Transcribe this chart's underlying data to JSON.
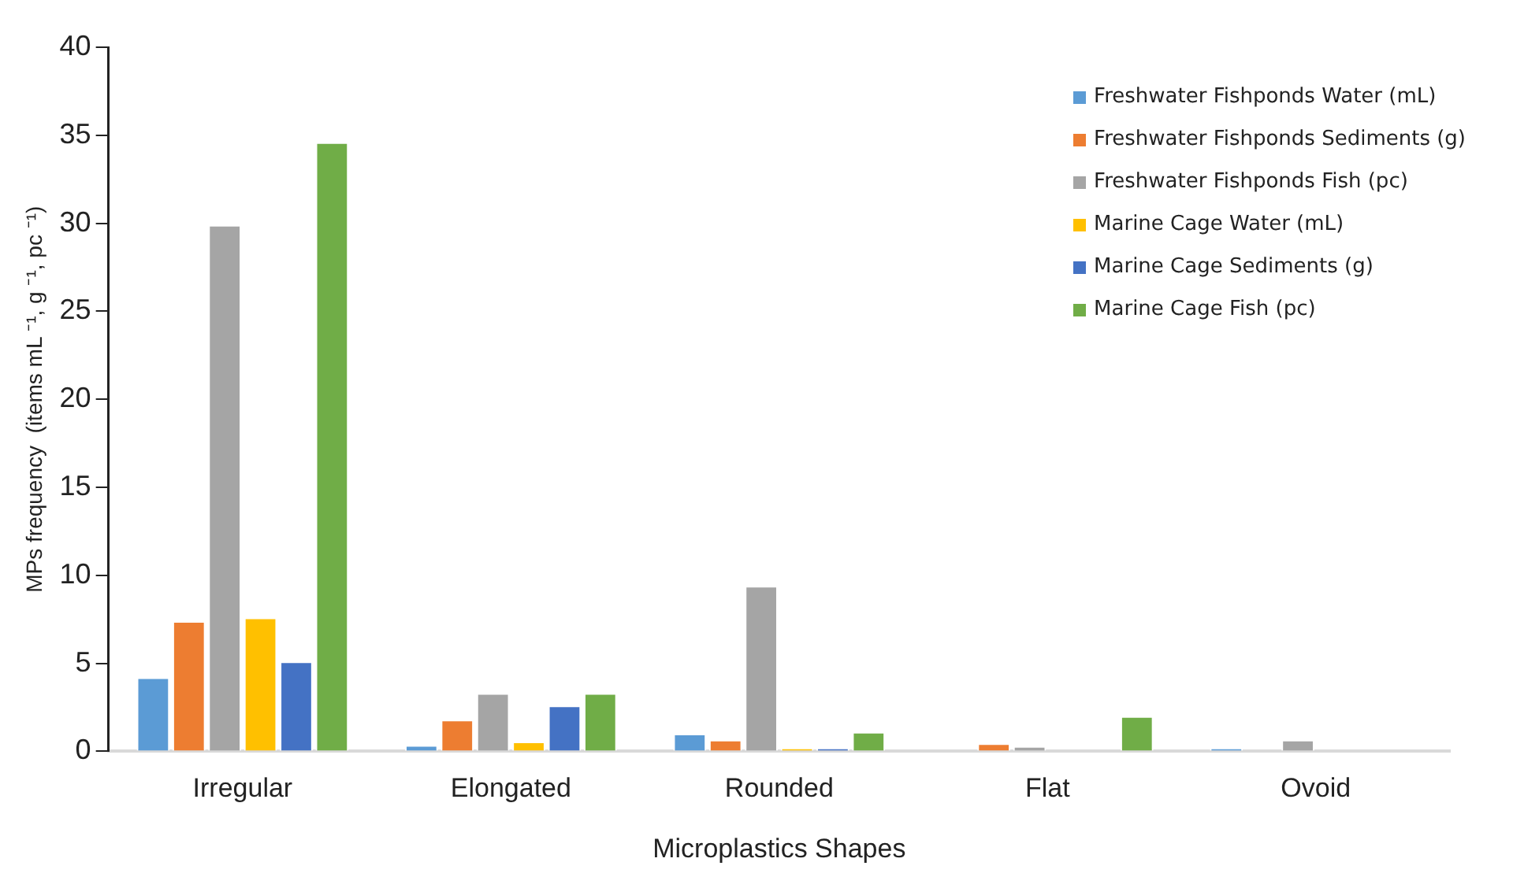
{
  "chart_data": {
    "type": "bar",
    "xlabel": "Microplastics Shapes",
    "ylabel": "MPs frequency  (items mL ⁻¹, g ⁻¹, pc ⁻¹)",
    "categories": [
      "Irregular",
      "Elongated",
      "Rounded",
      "Flat",
      "Ovoid"
    ],
    "series": [
      {
        "name": "Freshwater Fishponds Water (mL)",
        "color": "#5b9bd5",
        "values": [
          4.2,
          0.35,
          1.0,
          0,
          0.2
        ]
      },
      {
        "name": "Freshwater Fishponds Sediments (g)",
        "color": "#ed7d31",
        "values": [
          7.4,
          1.8,
          0.65,
          0.45,
          0
        ]
      },
      {
        "name": "Freshwater Fishponds Fish (pc)",
        "color": "#a5a5a5",
        "values": [
          29.9,
          3.3,
          9.4,
          0.3,
          0.65
        ]
      },
      {
        "name": "Marine Cage Water (mL)",
        "color": "#ffc000",
        "values": [
          7.6,
          0.55,
          0.2,
          0,
          0
        ]
      },
      {
        "name": "Marine Cage Sediments (g)",
        "color": "#4472c4",
        "values": [
          5.1,
          2.6,
          0.2,
          0,
          0
        ]
      },
      {
        "name": "Marine Cage Fish (pc)",
        "color": "#70ad47",
        "values": [
          34.6,
          3.3,
          1.1,
          2.0,
          0
        ]
      }
    ],
    "ylim": [
      0,
      40
    ],
    "yticks": [
      0,
      5,
      10,
      15,
      20,
      25,
      30,
      35,
      40
    ],
    "grid": false,
    "legend": "top right"
  }
}
